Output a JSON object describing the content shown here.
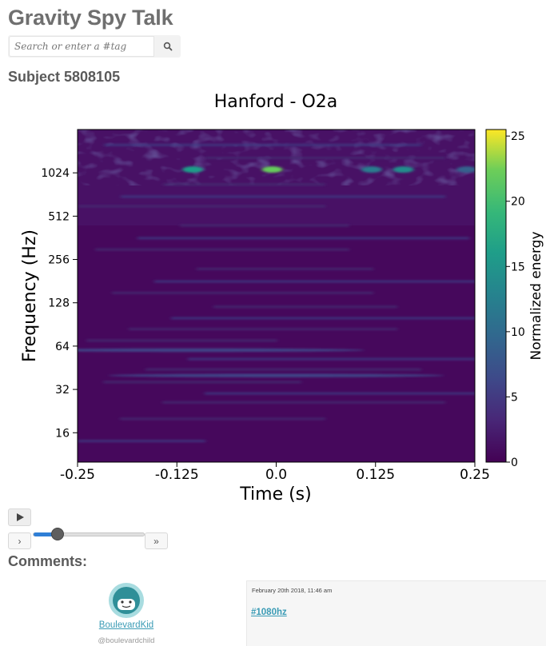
{
  "app": {
    "title": "Gravity Spy Talk"
  },
  "search": {
    "placeholder": "Search or enter a #tag",
    "value": "",
    "button_icon": "search-icon"
  },
  "subject": {
    "title": "Subject 5808105"
  },
  "chart_data": {
    "type": "heatmap",
    "title": "Hanford - O2a",
    "xlabel": "Time (s)",
    "ylabel": "Frequency (Hz)",
    "xlim": [
      -0.25,
      0.25
    ],
    "x_ticks": [
      -0.25,
      -0.125,
      0.0,
      0.125,
      0.25
    ],
    "x_tick_labels": [
      "-0.25",
      "-0.125",
      "0.0",
      "0.125",
      "0.25"
    ],
    "y_scale": "log",
    "ylim": [
      10,
      2048
    ],
    "y_ticks": [
      16,
      32,
      64,
      128,
      256,
      512,
      1024
    ],
    "y_tick_labels": [
      "16",
      "32",
      "64",
      "128",
      "256",
      "512",
      "1024"
    ],
    "colorbar": {
      "label": "Normalized energy",
      "range": [
        0,
        25.5
      ],
      "ticks": [
        0,
        5,
        10,
        15,
        20,
        25
      ],
      "tick_labels": [
        "0",
        "5",
        "10",
        "15",
        "20",
        "25"
      ],
      "colormap": "viridis"
    },
    "features": [
      {
        "time": -0.105,
        "frequency": 1080,
        "energy": 16
      },
      {
        "time": -0.005,
        "frequency": 1080,
        "energy": 22
      },
      {
        "time": 0.16,
        "frequency": 1080,
        "energy": 14
      },
      {
        "time": 0.12,
        "frequency": 1080,
        "energy": 12
      },
      {
        "time": 0.24,
        "frequency": 1080,
        "energy": 9
      },
      {
        "time": 0.0,
        "frequency": 40,
        "energy": 6
      },
      {
        "time": -0.1,
        "frequency": 60,
        "energy": 6
      }
    ]
  },
  "player": {
    "play_icon": "play-icon",
    "step_label": "›",
    "fast_label": "»",
    "slider_value": 0.22
  },
  "comments": {
    "heading": "Comments:",
    "items": [
      {
        "user": "BoulevardKid",
        "handle": "@boulevardchild",
        "date": "February 20th 2018, 11:46 am",
        "body": "#1080hz"
      }
    ]
  }
}
